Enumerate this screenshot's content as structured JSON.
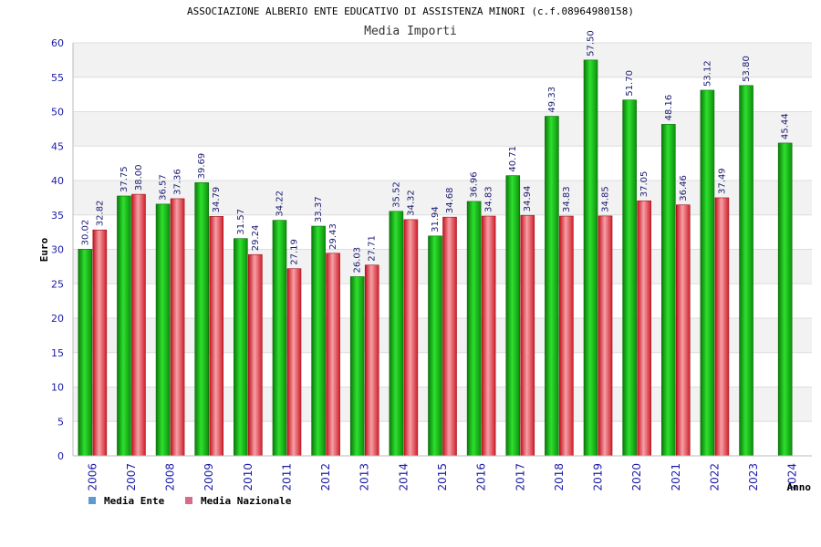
{
  "chart_data": {
    "type": "bar",
    "title": "ASSOCIAZIONE ALBERIO ENTE EDUCATIVO DI ASSISTENZA MINORI (c.f.08964980158)",
    "subtitle": "Media Importi",
    "xlabel": "Anno",
    "ylabel": "Euro",
    "ylim": [
      0,
      60
    ],
    "yticks": [
      0,
      5,
      10,
      15,
      20,
      25,
      30,
      35,
      40,
      45,
      50,
      55,
      60
    ],
    "grid": true,
    "legend_position": "bottom-left",
    "categories": [
      "2006",
      "2007",
      "2008",
      "2009",
      "2010",
      "2011",
      "2012",
      "2013",
      "2014",
      "2015",
      "2016",
      "2017",
      "2018",
      "2019",
      "2020",
      "2021",
      "2022",
      "2023",
      "2024"
    ],
    "series": [
      {
        "name": "Media Ente",
        "color": "#1fb81f",
        "legend_color": "#5b9bd5",
        "values": [
          30.02,
          37.75,
          36.57,
          39.69,
          31.57,
          34.22,
          33.37,
          26.03,
          35.52,
          31.94,
          36.96,
          40.71,
          49.33,
          57.5,
          51.7,
          48.16,
          53.12,
          53.8,
          45.44
        ],
        "labels": [
          "30.02",
          "37.75",
          "36.57",
          "39.69",
          "31.57",
          "34.22",
          "33.37",
          "26.03",
          "35.52",
          "31.94",
          "36.96",
          "40.71",
          "49.33",
          "57.50",
          "51.70",
          "48.16",
          "53.12",
          "53.80",
          "45.44"
        ]
      },
      {
        "name": "Media Nazionale",
        "color": "#e0303a",
        "legend_color": "#d96a8a",
        "values": [
          32.82,
          38.0,
          37.36,
          34.79,
          29.24,
          27.19,
          29.43,
          27.71,
          34.32,
          34.68,
          34.83,
          34.94,
          34.83,
          34.85,
          37.05,
          36.46,
          37.49,
          null,
          null
        ],
        "labels": [
          "32.82",
          "38.00",
          "37.36",
          "34.79",
          "29.24",
          "27.19",
          "29.43",
          "27.71",
          "34.32",
          "34.68",
          "34.83",
          "34.94",
          "34.83",
          "34.85",
          "37.05",
          "36.46",
          "37.49",
          null,
          null
        ]
      }
    ]
  }
}
